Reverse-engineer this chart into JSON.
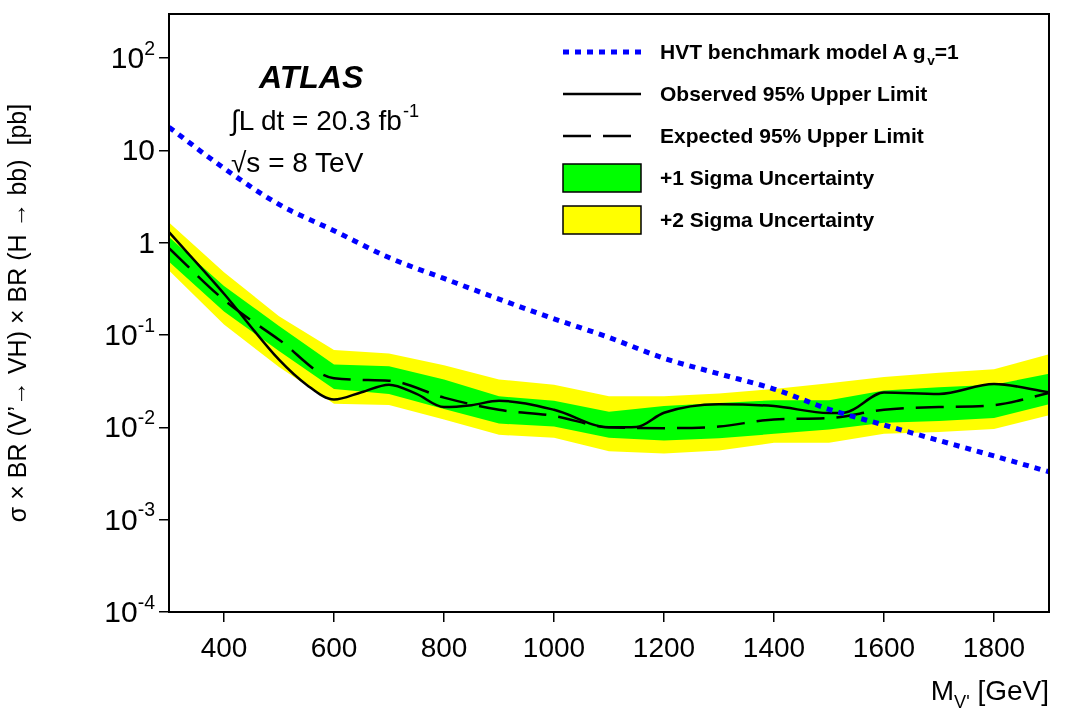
{
  "chart_data": {
    "type": "line",
    "xlabel": "M$_{V'}$ [GeV]",
    "ylabel": "σ × BR (V’→ VH) × BR (H → bb)  [pb]",
    "annotations": [
      "ATLAS",
      "∫L dt = 20.3 fb$^{-1}$",
      "√s = 8 TeV"
    ],
    "xlim": [
      300,
      1900
    ],
    "xticks": [
      400,
      600,
      800,
      1000,
      1200,
      1400,
      1600,
      1800
    ],
    "ylim": [
      0.0001,
      300
    ],
    "log": "y",
    "yticks": [
      {
        "value": 0.0001,
        "label": "10$^{-4}$"
      },
      {
        "value": 0.001,
        "label": "10$^{-3}$"
      },
      {
        "value": 0.01,
        "label": "10$^{-2}$"
      },
      {
        "value": 0.1,
        "label": "10$^{-1}$"
      },
      1,
      10,
      {
        "value": 100,
        "label": "10$^{2}$"
      }
    ],
    "legend": "top right",
    "series": [
      {
        "name": "HVT benchmark model A g$_{v}$=1",
        "type": "line",
        "line_style": "dotted",
        "color": "#0000ff",
        "x": [
          300,
          400,
          500,
          600,
          700,
          800,
          900,
          1000,
          1100,
          1200,
          1300,
          1400,
          1500,
          1600,
          1700,
          1800,
          1900
        ],
        "values": [
          17.8,
          6.4,
          2.6,
          1.35,
          0.69,
          0.41,
          0.245,
          0.15,
          0.094,
          0.056,
          0.038,
          0.026,
          0.0157,
          0.0106,
          0.0072,
          0.0049,
          0.0033
        ]
      },
      {
        "name": "Observed 95% Upper Limit",
        "type": "line",
        "line_style": "solid",
        "color": "#000000",
        "x": [
          300,
          400,
          500,
          550,
          600,
          650,
          700,
          750,
          800,
          850,
          900,
          1000,
          1100,
          1150,
          1200,
          1300,
          1400,
          1500,
          1530,
          1600,
          1700,
          1800,
          1900
        ],
        "values": [
          1.3,
          0.28,
          0.054,
          0.029,
          0.02,
          0.024,
          0.029,
          0.023,
          0.0166,
          0.0174,
          0.0194,
          0.0155,
          0.01,
          0.0101,
          0.0144,
          0.0178,
          0.017,
          0.0143,
          0.0145,
          0.0238,
          0.023,
          0.0294,
          0.024
        ]
      },
      {
        "name": "Expected 95% Upper Limit",
        "type": "line",
        "line_style": "dashed",
        "color": "#000000",
        "x": [
          300,
          400,
          500,
          600,
          700,
          800,
          900,
          1000,
          1100,
          1200,
          1300,
          1400,
          1500,
          1600,
          1700,
          1800,
          1900
        ],
        "values": [
          0.87,
          0.24,
          0.089,
          0.034,
          0.032,
          0.021,
          0.0155,
          0.0133,
          0.01,
          0.0098,
          0.0102,
          0.0122,
          0.0126,
          0.0155,
          0.0166,
          0.0174,
          0.0235
        ]
      },
      {
        "name": "+1 Sigma Uncertainty",
        "type": "line",
        "color": "#00ff00",
        "x": [
          300,
          400,
          500,
          600,
          700,
          800,
          900,
          1000,
          1100,
          1200,
          1300,
          1400,
          1500,
          1600,
          1700,
          1800,
          1900
        ],
        "values": [
          null,
          null,
          null,
          null,
          null,
          null,
          null,
          null,
          null,
          null,
          null,
          null,
          null,
          null,
          null,
          null,
          null
        ],
        "upper": [
          1.15,
          0.34,
          0.125,
          0.048,
          0.046,
          0.033,
          0.0217,
          0.0194,
          0.0148,
          0.017,
          0.0184,
          0.0197,
          0.0197,
          0.025,
          0.0272,
          0.029,
          0.038
        ],
        "lower": [
          0.62,
          0.18,
          0.067,
          0.026,
          0.023,
          0.0158,
          0.011,
          0.0102,
          0.0077,
          0.0072,
          0.0076,
          0.0085,
          0.0095,
          0.0112,
          0.0117,
          0.0126,
          0.0178
        ]
      },
      {
        "name": "+2 Sigma Uncertainty",
        "type": "line",
        "color": "#ffff00",
        "x": [
          300,
          400,
          500,
          600,
          700,
          800,
          900,
          1000,
          1100,
          1200,
          1300,
          1400,
          1500,
          1600,
          1700,
          1800,
          1900
        ],
        "values": [
          null,
          null,
          null,
          null,
          null,
          null,
          null,
          null,
          null,
          null,
          null,
          null,
          null,
          null,
          null,
          null,
          null
        ],
        "upper": [
          1.65,
          0.48,
          0.16,
          0.069,
          0.063,
          0.047,
          0.033,
          0.0289,
          0.0217,
          0.0217,
          0.0233,
          0.026,
          0.03,
          0.035,
          0.039,
          0.0425,
          0.062
        ],
        "lower": [
          0.5,
          0.13,
          0.045,
          0.018,
          0.0175,
          0.0122,
          0.0083,
          0.0077,
          0.0055,
          0.0052,
          0.0056,
          0.0068,
          0.0068,
          0.0085,
          0.0089,
          0.0096,
          0.0135
        ]
      }
    ]
  }
}
